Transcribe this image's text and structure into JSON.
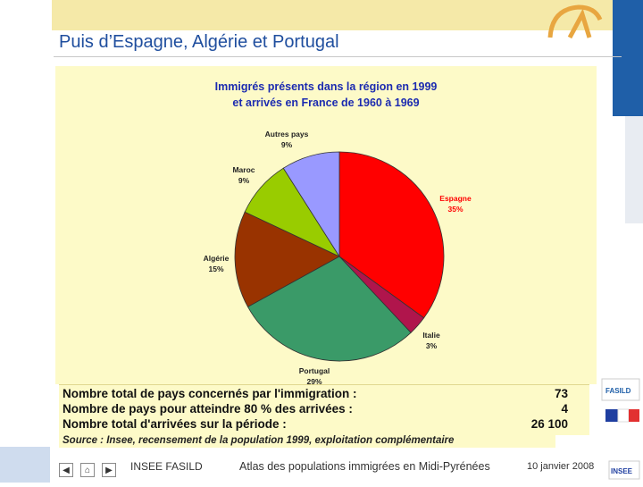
{
  "slide": {
    "title": "Puis d’Espagne, Algérie et Portugal"
  },
  "chart_data": {
    "type": "pie",
    "title_lines": [
      "Immigrés présents dans la région en 1999",
      "et arrivés en France de 1960 à 1969"
    ],
    "slices": [
      {
        "name": "Espagne",
        "value": 35,
        "value_label": "35%",
        "color": "#ff0000"
      },
      {
        "name": "Italie",
        "value": 3,
        "value_label": "3%",
        "color": "#b0154c"
      },
      {
        "name": "Portugal",
        "value": 29,
        "value_label": "29%",
        "color": "#3a9a68"
      },
      {
        "name": "Algérie",
        "value": 15,
        "value_label": "15%",
        "color": "#993300"
      },
      {
        "name": "Maroc",
        "value": 9,
        "value_label": "9%",
        "color": "#99cc00"
      },
      {
        "name": "Autres pays",
        "value": 9,
        "value_label": "9%",
        "color": "#9999ff"
      }
    ]
  },
  "stats": {
    "rows": [
      {
        "label": "Nombre total de pays concernés par l'immigration :",
        "value": "73"
      },
      {
        "label": "Nombre de pays pour atteindre 80 % des arrivées :",
        "value": "4"
      },
      {
        "label": "Nombre total d'arrivées sur la période :",
        "value": "26 100"
      }
    ],
    "source": "Source : Insee, recensement de la population 1999, exploitation complémentaire"
  },
  "footer": {
    "org": "INSEE FASILD",
    "subject": "Atlas des populations immigrées en Midi-Pyrénées",
    "date": "10 janvier 2008"
  },
  "nav": {
    "prev_icon": "arrow-left-icon",
    "home_icon": "home-icon",
    "next_icon": "arrow-right-icon"
  },
  "logos": {
    "fasild": "FASILD",
    "insee": "INSEE"
  },
  "colors": {
    "title_blue": "#1f4e9e",
    "chart_title_blue": "#1c2bb0",
    "panel_yellow": "#fdfac8",
    "brand_blue": "#1f5fa8"
  }
}
